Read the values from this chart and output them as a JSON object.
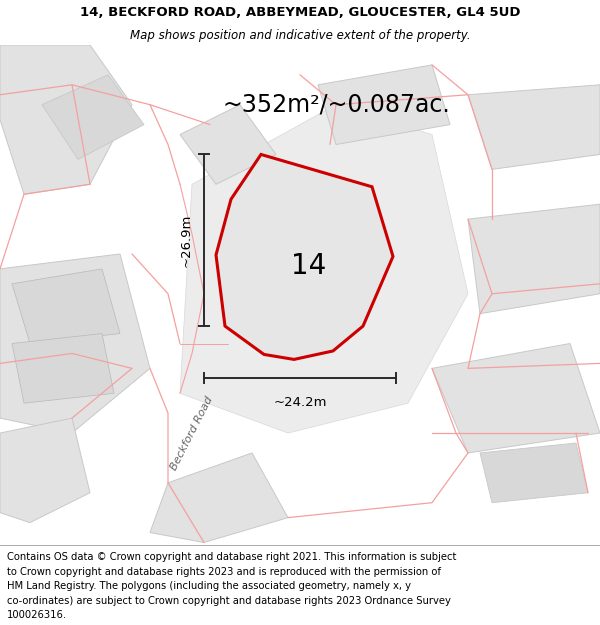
{
  "title_line1": "14, BECKFORD ROAD, ABBEYMEAD, GLOUCESTER, GL4 5UD",
  "title_line2": "Map shows position and indicative extent of the property.",
  "footer_lines": [
    "Contains OS data © Crown copyright and database right 2021. This information is subject",
    "to Crown copyright and database rights 2023 and is reproduced with the permission of",
    "HM Land Registry. The polygons (including the associated geometry, namely x, y",
    "co-ordinates) are subject to Crown copyright and database rights 2023 Ordnance Survey",
    "100026316."
  ],
  "area_label": "~352m²/~0.087ac.",
  "plot_number": "14",
  "dim_height": "~26.9m",
  "dim_width": "~24.2m",
  "road_label": "Beckford Road",
  "map_bg": "#f7f7f7",
  "plot_fill": "#e6e6e6",
  "plot_edge": "#cc0000",
  "gray_fill": "#e2e2e2",
  "gray_fill2": "#d8d8d8",
  "gray_edge": "#c8c8c8",
  "pink": "#f4a0a0",
  "dim_color": "#2a2a2a",
  "road_color": "#888888",
  "title_fs": 9.5,
  "sub_fs": 8.5,
  "footer_fs": 7.2,
  "area_fs": 17,
  "num_fs": 20,
  "dim_fs": 9.5,
  "road_fs": 8.0
}
